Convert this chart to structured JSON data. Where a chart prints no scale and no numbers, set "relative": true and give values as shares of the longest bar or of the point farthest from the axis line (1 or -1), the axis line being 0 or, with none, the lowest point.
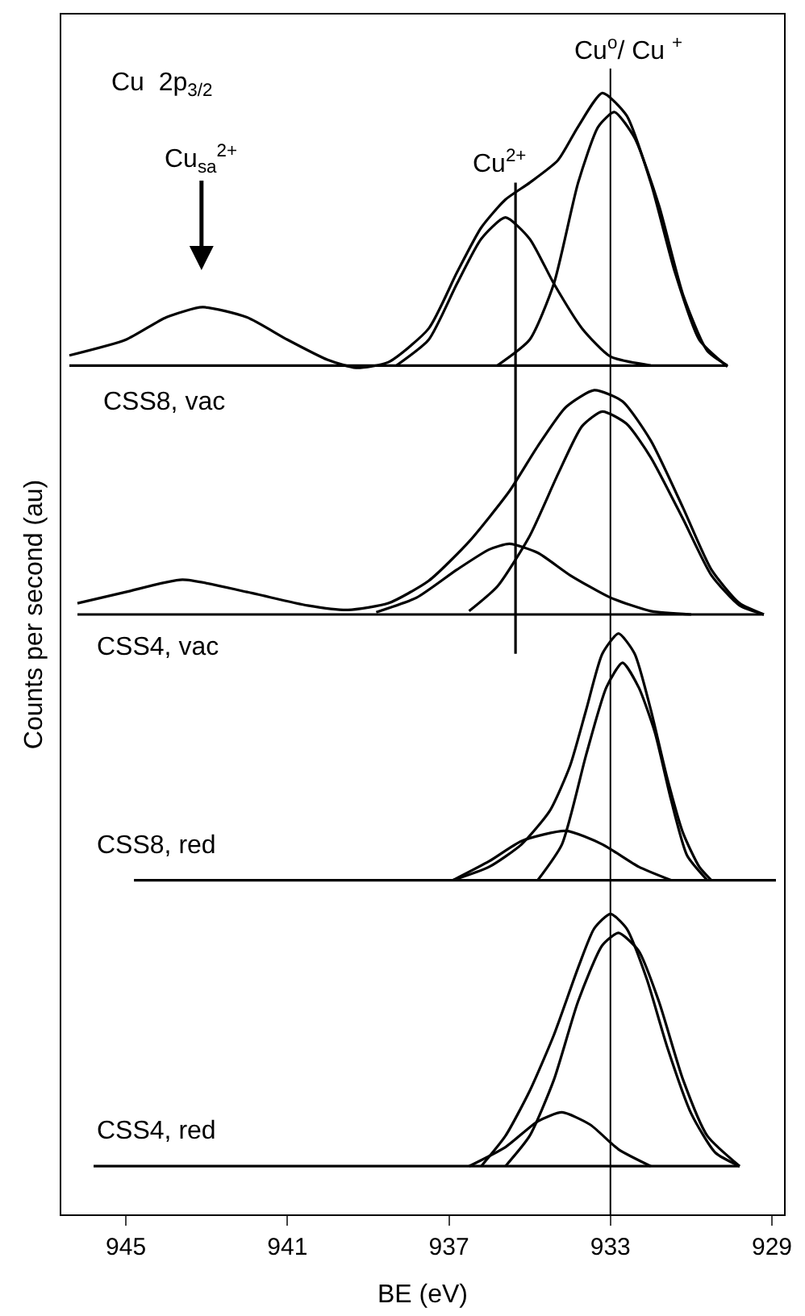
{
  "chart_data": {
    "type": "line",
    "relative": true,
    "xlabel": "BE (eV)",
    "ylabel": "Counts per second (au)",
    "xlim": [
      946.6,
      928.7
    ],
    "xticks": [
      945,
      941,
      937,
      933,
      929
    ],
    "ref_lines": [
      {
        "axis": "x",
        "value": 933,
        "color": "#000000"
      }
    ],
    "annotations": [
      "Cu  2p$_{3/2}$",
      "Cu$^{2+}$",
      "Cu$^{o}$/ Cu $^{+}$",
      "Cu$_{sa}$$^{2+}$",
      "CSS8, vac",
      "CSS4, vac",
      "CSS8, red",
      "CSS4, red"
    ],
    "series": [
      {
        "color": "#000000",
        "x": [
          946.4,
          945,
          944,
          943.1,
          942,
          941,
          940,
          939.3,
          938.5,
          937.5,
          936.8,
          936.2,
          935.6,
          935,
          934.3,
          933.8,
          933.2,
          932.6,
          932,
          931.4,
          930.8,
          930.1
        ],
        "values": [
          0.766,
          0.78,
          0.8,
          0.809,
          0.8,
          0.78,
          0.762,
          0.755,
          0.76,
          0.79,
          0.84,
          0.88,
          0.905,
          0.92,
          0.94,
          0.97,
          1.0,
          0.98,
          0.92,
          0.84,
          0.78,
          0.756
        ]
      },
      {
        "color": "#000000",
        "x": [
          938.3,
          937.5,
          936.8,
          936.2,
          935.6,
          935,
          934.4,
          933.7,
          933,
          932
        ],
        "values": [
          0.757,
          0.78,
          0.83,
          0.87,
          0.889,
          0.87,
          0.83,
          0.79,
          0.765,
          0.757
        ]
      },
      {
        "color": "#000000",
        "x": [
          935.8,
          935,
          934.4,
          933.8,
          933.3,
          932.9,
          932.4,
          931.8,
          931.2,
          930.6,
          930.1
        ],
        "values": [
          0.757,
          0.78,
          0.83,
          0.92,
          0.97,
          0.983,
          0.96,
          0.9,
          0.82,
          0.77,
          0.757
        ]
      },
      {
        "color": "#000000",
        "x": [
          946.4,
          930.1
        ],
        "values": [
          0.757,
          0.757
        ]
      },
      {
        "color": "#000000",
        "x": [
          946.2,
          945,
          943.6,
          942,
          940.5,
          939.5,
          938.5,
          937.5,
          936.5,
          935.5,
          934.8,
          934.1,
          933.4,
          932.7,
          932,
          931.2,
          930.5,
          929.8,
          929.2
        ],
        "values": [
          0.545,
          0.555,
          0.566,
          0.555,
          0.543,
          0.539,
          0.545,
          0.565,
          0.6,
          0.645,
          0.685,
          0.72,
          0.735,
          0.725,
          0.69,
          0.63,
          0.575,
          0.545,
          0.535
        ]
      },
      {
        "color": "#000000",
        "x": [
          938.8,
          937.8,
          936.8,
          936,
          935.5,
          934.8,
          934,
          933,
          932,
          931
        ],
        "values": [
          0.537,
          0.55,
          0.575,
          0.593,
          0.598,
          0.59,
          0.57,
          0.55,
          0.538,
          0.535
        ]
      },
      {
        "color": "#000000",
        "x": [
          936.5,
          935.8,
          935,
          934.3,
          933.7,
          933.2,
          932.6,
          932,
          931.2,
          930.5,
          929.8,
          929.2
        ],
        "values": [
          0.538,
          0.56,
          0.605,
          0.66,
          0.703,
          0.716,
          0.705,
          0.675,
          0.62,
          0.57,
          0.543,
          0.535
        ]
      },
      {
        "color": "#000000",
        "x": [
          946.2,
          929.2
        ],
        "values": [
          0.535,
          0.535
        ]
      },
      {
        "color": "#000000",
        "x": [
          936.9,
          936,
          935.2,
          934.5,
          934,
          933.6,
          933.2,
          932.8,
          932.4,
          932,
          931.6,
          931.2,
          930.8,
          930.5
        ],
        "values": [
          0.298,
          0.31,
          0.33,
          0.36,
          0.4,
          0.45,
          0.5,
          0.518,
          0.5,
          0.45,
          0.39,
          0.34,
          0.31,
          0.298
        ]
      },
      {
        "color": "#000000",
        "x": [
          936.9,
          936,
          935.2,
          934.1,
          933.2,
          932.3,
          931.5
        ],
        "values": [
          0.298,
          0.315,
          0.333,
          0.342,
          0.33,
          0.31,
          0.298
        ]
      },
      {
        "color": "#000000",
        "x": [
          934.8,
          934.2,
          933.6,
          933.1,
          932.7,
          932.3,
          931.9,
          931.5,
          931.1,
          930.6
        ],
        "values": [
          0.298,
          0.33,
          0.41,
          0.47,
          0.492,
          0.47,
          0.43,
          0.37,
          0.32,
          0.298
        ]
      },
      {
        "color": "#000000",
        "x": [
          944.8,
          928.9
        ],
        "values": [
          0.298,
          0.298
        ]
      },
      {
        "color": "#000000",
        "x": [
          936.2,
          935.6,
          935,
          934.4,
          933.8,
          933.4,
          933.0,
          932.6,
          932.1,
          931.6,
          931,
          930.4,
          929.8
        ],
        "values": [
          0.043,
          0.07,
          0.11,
          0.16,
          0.22,
          0.255,
          0.268,
          0.255,
          0.21,
          0.15,
          0.09,
          0.055,
          0.043
        ]
      },
      {
        "color": "#000000",
        "x": [
          936.5,
          935.6,
          934.8,
          934.2,
          933.5,
          932.8,
          932
        ],
        "values": [
          0.043,
          0.06,
          0.083,
          0.091,
          0.08,
          0.058,
          0.043
        ]
      },
      {
        "color": "#000000",
        "x": [
          935.6,
          935,
          934.4,
          933.8,
          933.2,
          932.8,
          932.3,
          931.8,
          931.2,
          930.6,
          929.8
        ],
        "values": [
          0.043,
          0.07,
          0.12,
          0.19,
          0.24,
          0.251,
          0.235,
          0.19,
          0.12,
          0.07,
          0.043
        ]
      },
      {
        "color": "#000000",
        "x": [
          945.8,
          929.8
        ],
        "values": [
          0.043,
          0.043
        ]
      },
      {
        "color": "#000000",
        "x": [
          935.35,
          935.35
        ],
        "values": [
          0.92,
          0.5
        ]
      }
    ]
  }
}
